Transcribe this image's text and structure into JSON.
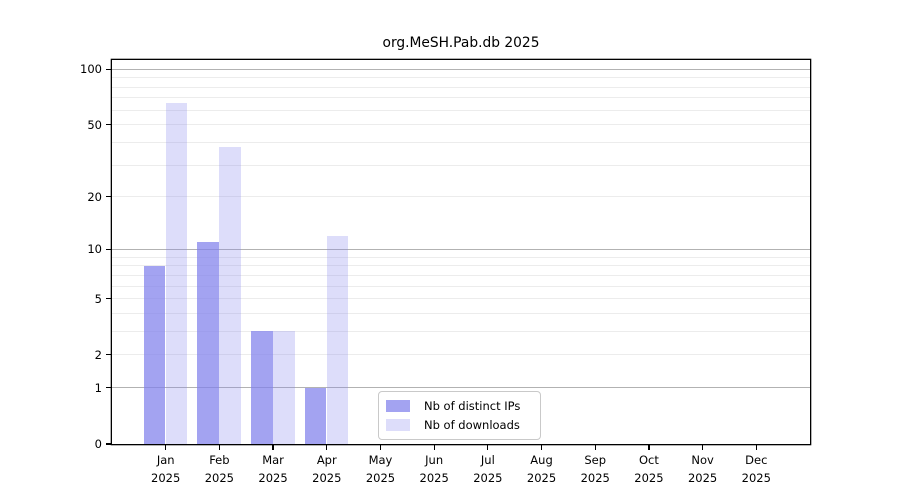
{
  "chart_data": {
    "type": "bar",
    "title": "org.MeSH.Pab.db 2025",
    "categories": [
      "Jan",
      "Feb",
      "Mar",
      "Apr",
      "May",
      "Jun",
      "Jul",
      "Aug",
      "Sep",
      "Oct",
      "Nov",
      "Dec"
    ],
    "year": "2025",
    "series": [
      {
        "name": "Nb of distinct IPs",
        "values": [
          8,
          11,
          3,
          1,
          0,
          0,
          0,
          0,
          0,
          0,
          0,
          0
        ],
        "color": "rgba(128,128,235,0.72)"
      },
      {
        "name": "Nb of downloads",
        "values": [
          66,
          38,
          3,
          12,
          0,
          0,
          0,
          0,
          0,
          0,
          0,
          0
        ],
        "color": "rgba(128,128,235,0.27)"
      }
    ],
    "xlabel": "",
    "ylabel": "",
    "y_axis": {
      "scale": "log10(value+1)",
      "tick_values": [
        0,
        1,
        2,
        5,
        10,
        20,
        50,
        100
      ],
      "major_gridlines": [
        1,
        10,
        100
      ],
      "minor_gridlines": [
        2,
        3,
        4,
        5,
        6,
        7,
        8,
        9,
        20,
        30,
        40,
        50,
        60,
        70,
        80,
        90
      ],
      "ylim": [
        0,
        112
      ]
    },
    "grid": true,
    "legend_position": "lower center",
    "colors": {
      "bar_distinct_ips": "rgba(128,128,235,0.72)",
      "bar_downloads": "rgba(128,128,235,0.27)",
      "major_gridline": "#b2b2b2",
      "minor_gridline": "#ececec"
    }
  }
}
